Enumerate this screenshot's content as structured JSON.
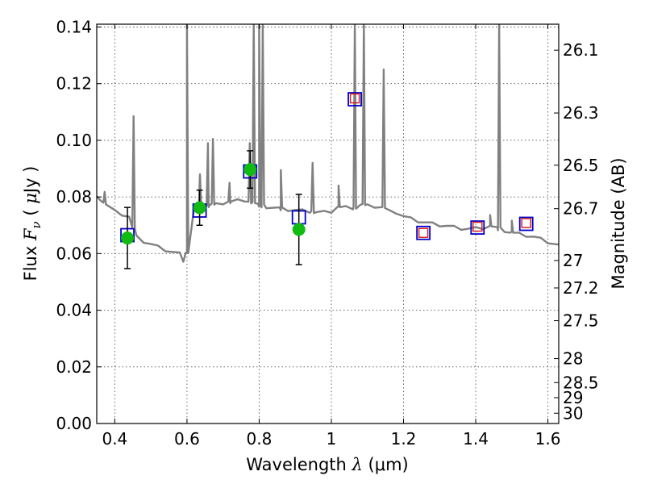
{
  "chart_data": {
    "type": "scatter",
    "xlabel": "Wavelength",
    "xlabel_symbol": "λ",
    "xlabel_unit": "(μm)",
    "ylabel": "Flux",
    "ylabel_symbol": "F",
    "ylabel_subscript": "ν",
    "ylabel_unit_open": "(",
    "ylabel_unit_mu": "μ",
    "ylabel_unit": "Jy",
    "ylabel_unit_close": ")",
    "y2label": "Magnitude (AB)",
    "xlim": [
      0.35,
      1.63
    ],
    "ylim": [
      0.0,
      0.141
    ],
    "grid": true,
    "x_ticks": [
      0.4,
      0.6,
      0.8,
      1.0,
      1.2,
      1.4,
      1.6
    ],
    "x_tick_labels": [
      "0.4",
      "0.6",
      "0.8",
      "1",
      "1.2",
      "1.4",
      "1.6"
    ],
    "y_ticks": [
      0.0,
      0.02,
      0.04,
      0.06,
      0.08,
      0.1,
      0.12,
      0.14
    ],
    "y_tick_labels": [
      "0.00",
      "0.02",
      "0.04",
      "0.06",
      "0.08",
      "0.10",
      "0.12",
      "0.14"
    ],
    "right_ticks": [
      {
        "mag": 26.1,
        "label": "26.1"
      },
      {
        "mag": 26.3,
        "label": "26.3"
      },
      {
        "mag": 26.5,
        "label": "26.5"
      },
      {
        "mag": 26.7,
        "label": "26.7"
      },
      {
        "mag": 27.0,
        "label": "27"
      },
      {
        "mag": 27.2,
        "label": "27.2"
      },
      {
        "mag": 27.5,
        "label": "27.5"
      },
      {
        "mag": 28.0,
        "label": "28"
      },
      {
        "mag": 28.5,
        "label": "28.5"
      },
      {
        "mag": 29.0,
        "label": "29"
      },
      {
        "mag": 30.0,
        "label": "30"
      }
    ],
    "series": [
      {
        "kind": "model_spectrum",
        "color": "#808080",
        "continuum": [
          [
            0.35,
            0.0797
          ],
          [
            0.36,
            0.0792
          ],
          [
            0.38,
            0.0768
          ],
          [
            0.4,
            0.0748
          ],
          [
            0.42,
            0.0738
          ],
          [
            0.44,
            0.0728
          ],
          [
            0.46,
            0.0658
          ],
          [
            0.48,
            0.0642
          ],
          [
            0.5,
            0.0632
          ],
          [
            0.52,
            0.0622
          ],
          [
            0.54,
            0.0612
          ],
          [
            0.56,
            0.0604
          ],
          [
            0.58,
            0.0598
          ],
          [
            0.59,
            0.0575
          ],
          [
            0.6,
            0.06
          ],
          [
            0.62,
            0.076
          ],
          [
            0.64,
            0.0762
          ],
          [
            0.66,
            0.0768
          ],
          [
            0.68,
            0.0772
          ],
          [
            0.7,
            0.0778
          ],
          [
            0.72,
            0.0782
          ],
          [
            0.74,
            0.0786
          ],
          [
            0.76,
            0.0788
          ],
          [
            0.78,
            0.0778
          ],
          [
            0.8,
            0.077
          ],
          [
            0.82,
            0.0764
          ],
          [
            0.84,
            0.076
          ],
          [
            0.86,
            0.0757
          ],
          [
            0.88,
            0.0754
          ],
          [
            0.9,
            0.0752
          ],
          [
            0.92,
            0.075
          ],
          [
            0.94,
            0.0748
          ],
          [
            0.96,
            0.0745
          ],
          [
            0.98,
            0.0745
          ],
          [
            1.0,
            0.0748
          ],
          [
            1.02,
            0.0762
          ],
          [
            1.04,
            0.0762
          ],
          [
            1.06,
            0.076
          ],
          [
            1.08,
            0.077
          ],
          [
            1.1,
            0.0768
          ],
          [
            1.12,
            0.0766
          ],
          [
            1.14,
            0.0762
          ],
          [
            1.16,
            0.0748
          ],
          [
            1.18,
            0.0745
          ],
          [
            1.2,
            0.073
          ],
          [
            1.22,
            0.0722
          ],
          [
            1.24,
            0.0714
          ],
          [
            1.26,
            0.0708
          ],
          [
            1.28,
            0.0704
          ],
          [
            1.3,
            0.07
          ],
          [
            1.32,
            0.0696
          ],
          [
            1.34,
            0.0692
          ],
          [
            1.36,
            0.0688
          ],
          [
            1.38,
            0.0686
          ],
          [
            1.4,
            0.0688
          ],
          [
            1.42,
            0.069
          ],
          [
            1.44,
            0.0694
          ],
          [
            1.46,
            0.0688
          ],
          [
            1.48,
            0.068
          ],
          [
            1.5,
            0.0672
          ],
          [
            1.52,
            0.0668
          ],
          [
            1.54,
            0.0663
          ],
          [
            1.56,
            0.0658
          ],
          [
            1.58,
            0.065
          ],
          [
            1.6,
            0.064
          ],
          [
            1.63,
            0.063
          ]
        ],
        "emission_lines": [
          [
            0.372,
            0.0812
          ],
          [
            0.452,
            0.1085
          ],
          [
            0.6,
            0.141
          ],
          [
            0.636,
            0.088
          ],
          [
            0.658,
            0.099
          ],
          [
            0.672,
            0.1005
          ],
          [
            0.718,
            0.085
          ],
          [
            0.774,
            0.099
          ],
          [
            0.785,
            0.141
          ],
          [
            0.8,
            0.141
          ],
          [
            0.81,
            0.141
          ],
          [
            0.86,
            0.0895
          ],
          [
            0.948,
            0.092
          ],
          [
            1.02,
            0.084
          ],
          [
            1.065,
            0.141
          ],
          [
            1.09,
            0.141
          ],
          [
            1.145,
            0.125
          ],
          [
            1.44,
            0.074
          ],
          [
            1.465,
            0.141
          ],
          [
            1.5,
            0.072
          ]
        ]
      },
      {
        "kind": "model_photometry",
        "marker": "square",
        "color": "#0000cc",
        "points": [
          {
            "x": 0.435,
            "y": 0.0665
          },
          {
            "x": 0.635,
            "y": 0.0752
          },
          {
            "x": 0.775,
            "y": 0.089
          },
          {
            "x": 0.91,
            "y": 0.0728
          },
          {
            "x": 1.065,
            "y": 0.1145
          },
          {
            "x": 1.255,
            "y": 0.0673
          },
          {
            "x": 1.405,
            "y": 0.0692
          },
          {
            "x": 1.54,
            "y": 0.0705
          }
        ]
      },
      {
        "kind": "photometric_limit",
        "marker": "square",
        "color": "#dd2222",
        "points": [
          {
            "x": 1.065,
            "y": 0.1148
          },
          {
            "x": 1.255,
            "y": 0.0673
          },
          {
            "x": 1.405,
            "y": 0.0695
          },
          {
            "x": 1.54,
            "y": 0.0708
          }
        ]
      },
      {
        "kind": "observed_photometry",
        "marker": "circle",
        "color": "#11bb11",
        "points": [
          {
            "x": 0.435,
            "y": 0.0655,
            "err": 0.0108
          },
          {
            "x": 0.635,
            "y": 0.0762,
            "err": 0.0062
          },
          {
            "x": 0.775,
            "y": 0.0897,
            "err": 0.0066
          },
          {
            "x": 0.91,
            "y": 0.0685,
            "err": 0.0124
          }
        ]
      }
    ]
  }
}
